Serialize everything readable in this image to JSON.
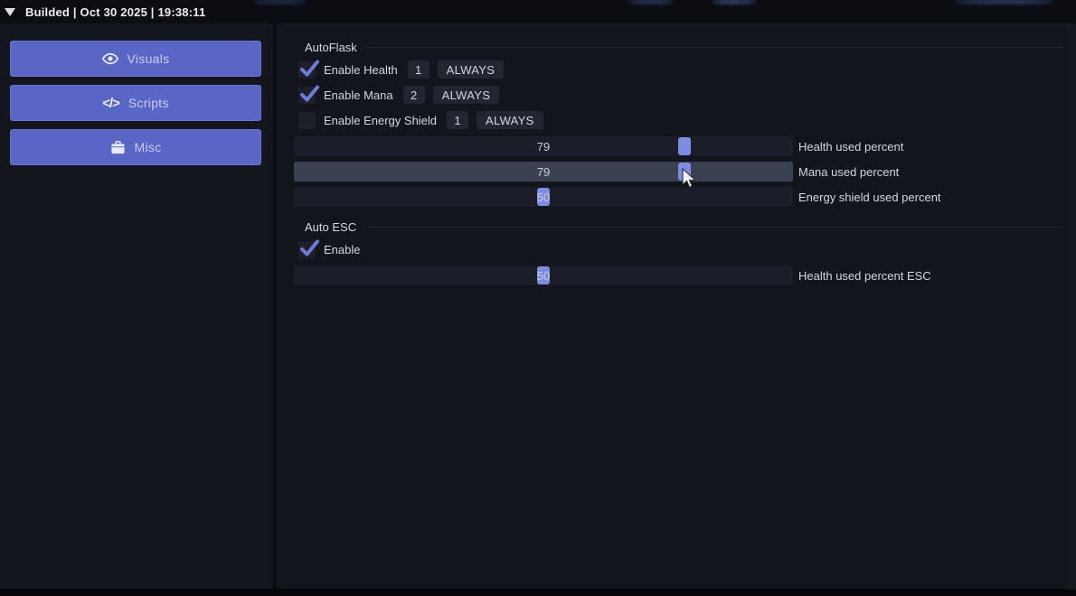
{
  "titlebar": {
    "title": "Builded | Oct 30 2025 | 19:38:11"
  },
  "sidebar": {
    "buttons": [
      {
        "label": "Visuals",
        "icon": "eye-icon"
      },
      {
        "label": "Scripts",
        "icon": "code-icon"
      },
      {
        "label": "Misc",
        "icon": "briefcase-icon"
      }
    ]
  },
  "groups": [
    {
      "title": "AutoFlask",
      "checkboxes": [
        {
          "label": "Enable Health",
          "checked": true,
          "key": "1",
          "mode": "ALWAYS"
        },
        {
          "label": "Enable Mana",
          "checked": true,
          "key": "2",
          "mode": "ALWAYS"
        },
        {
          "label": "Enable Energy Shield",
          "checked": false,
          "key": "1",
          "mode": "ALWAYS"
        }
      ],
      "sliders": [
        {
          "value": 79,
          "label": "Health used percent",
          "hovered": false
        },
        {
          "value": 79,
          "label": "Mana used percent",
          "hovered": true
        },
        {
          "value": 50,
          "label": "Energy shield used percent",
          "hovered": false
        }
      ]
    },
    {
      "title": "Auto ESC",
      "checkboxes": [
        {
          "label": "Enable",
          "checked": true,
          "key": null,
          "mode": null
        }
      ],
      "sliders": [
        {
          "value": 50,
          "label": "Health used percent ESC",
          "hovered": false
        }
      ]
    }
  ],
  "colors": {
    "accent_button": "#5a66c6",
    "slider_handle": "#7d8de2",
    "checkmark": "#6d7cd8",
    "track": "#1b1e28",
    "track_hover": "#3a4150",
    "panel_bg": "#13151d",
    "topbar_bg": "#0b0d13"
  }
}
